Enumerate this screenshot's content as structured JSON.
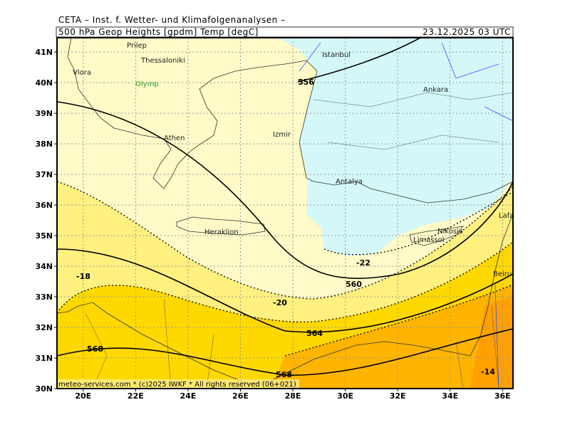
{
  "header": {
    "institute": "CETA – Inst. f. Wetter- und Klimafolgenanalysen –",
    "product": "500 hPa Geop Heights [gpdm] Temp [degC]",
    "valid": "23.12.2025 03 UTC"
  },
  "map": {
    "lon_range": [
      19,
      36.4
    ],
    "lat_range": [
      30,
      41.47
    ],
    "lon_ticks": [
      {
        "value": 20,
        "label": "20E"
      },
      {
        "value": 22,
        "label": "22E"
      },
      {
        "value": 24,
        "label": "24E"
      },
      {
        "value": 26,
        "label": "26E"
      },
      {
        "value": 28,
        "label": "28E"
      },
      {
        "value": 30,
        "label": "30E"
      },
      {
        "value": 32,
        "label": "32E"
      },
      {
        "value": 34,
        "label": "34E"
      },
      {
        "value": 36,
        "label": "36E"
      }
    ],
    "lat_ticks": [
      {
        "value": 30,
        "label": "30N"
      },
      {
        "value": 31,
        "label": "31N"
      },
      {
        "value": 32,
        "label": "32N"
      },
      {
        "value": 33,
        "label": "33N"
      },
      {
        "value": 34,
        "label": "34N"
      },
      {
        "value": 35,
        "label": "35N"
      },
      {
        "value": 36,
        "label": "36N"
      },
      {
        "value": 37,
        "label": "37N"
      },
      {
        "value": 38,
        "label": "38N"
      },
      {
        "value": 39,
        "label": "39N"
      },
      {
        "value": 40,
        "label": "40N"
      },
      {
        "value": 41,
        "label": "41N"
      }
    ],
    "height_labels": [
      556,
      560,
      564,
      568,
      568
    ],
    "temp_labels": [
      -18,
      -20,
      -22,
      -14
    ],
    "cities": [
      "Prilep",
      "Thessaloniki",
      "Vlora",
      "Olymp",
      "Athen",
      "Izmir",
      "Istanbul",
      "Ankara",
      "Antalya",
      "Heraklion",
      "Nikosia",
      "Limassol",
      "Lafakia",
      "Beiru"
    ]
  },
  "footer": "meteo-services.com * (c)2025 IWKF * All rights reserved (06+021)"
}
